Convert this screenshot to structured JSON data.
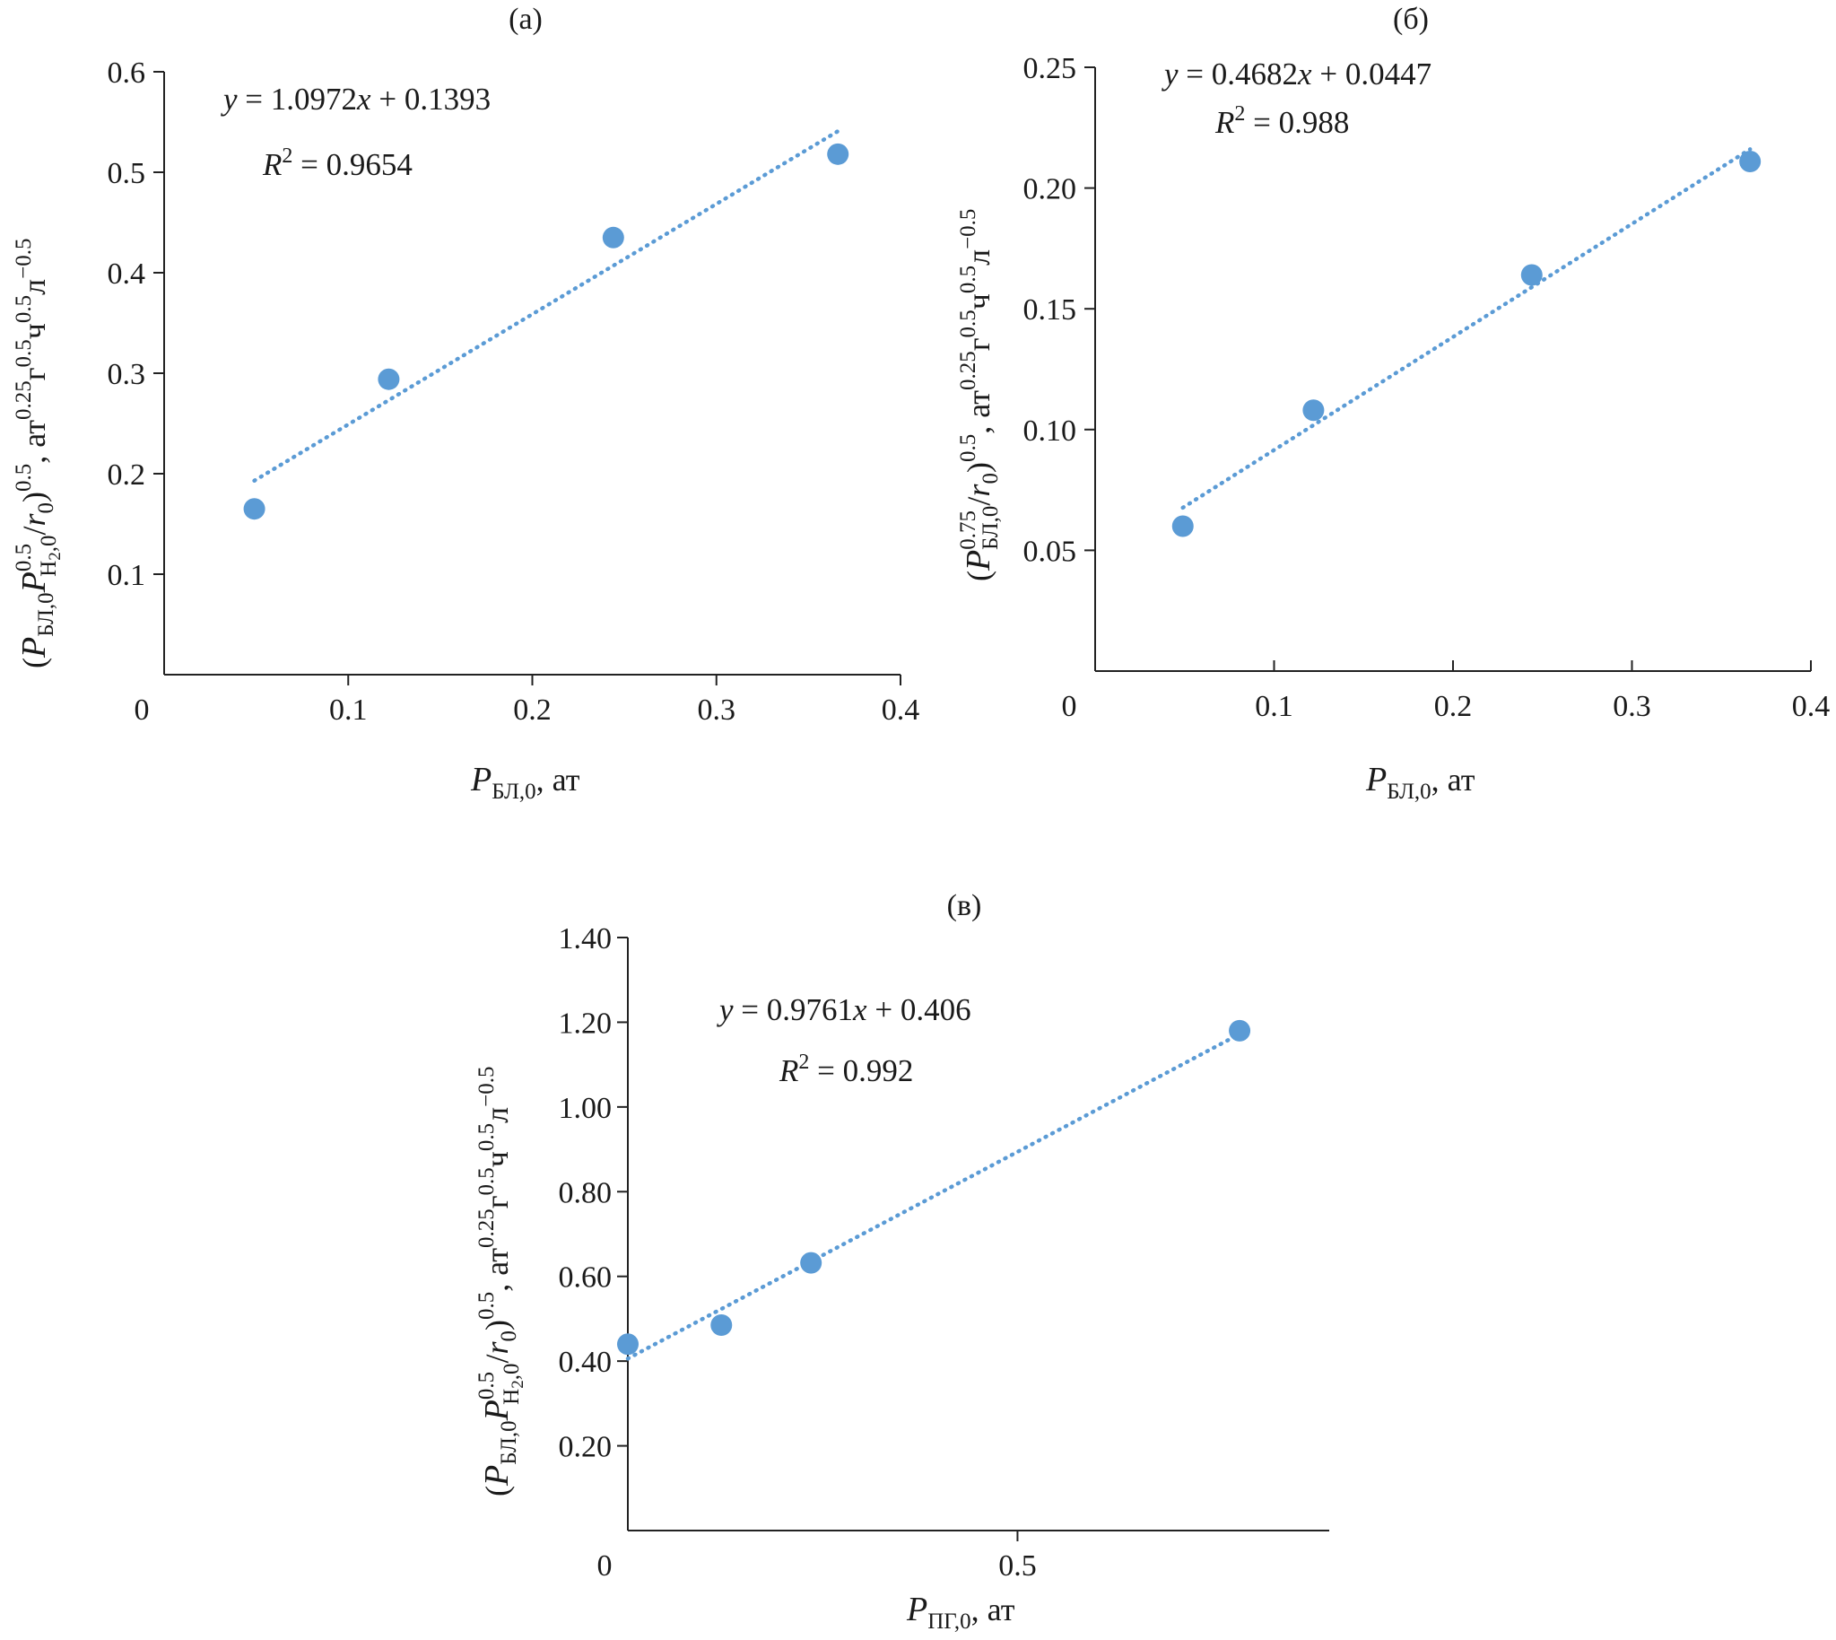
{
  "chart_data": [
    {
      "type": "scatter",
      "panel_label": "(a)",
      "xlim": [
        0,
        0.4
      ],
      "ylim": [
        0,
        0.6
      ],
      "xticks": [
        {
          "v": 0,
          "label": "0"
        },
        {
          "v": 0.1,
          "label": "0.1"
        },
        {
          "v": 0.2,
          "label": "0.2"
        },
        {
          "v": 0.3,
          "label": "0.3"
        },
        {
          "v": 0.4,
          "label": "0.4"
        }
      ],
      "yticks": [
        {
          "v": 0.1,
          "label": "0.1"
        },
        {
          "v": 0.2,
          "label": "0.2"
        },
        {
          "v": 0.3,
          "label": "0.3"
        },
        {
          "v": 0.4,
          "label": "0.4"
        },
        {
          "v": 0.5,
          "label": "0.5"
        },
        {
          "v": 0.6,
          "label": "0.6"
        }
      ],
      "points": [
        {
          "x": 0.049,
          "y": 0.165
        },
        {
          "x": 0.122,
          "y": 0.294
        },
        {
          "x": 0.244,
          "y": 0.435
        },
        {
          "x": 0.366,
          "y": 0.518
        }
      ],
      "trendline": {
        "slope": 1.0972,
        "intercept": 0.1393,
        "x_range": [
          0.049,
          0.366
        ]
      },
      "equation": {
        "lhs": "y",
        "rhs_mid": " = 1.0972",
        "var": "x",
        "rhs_end": " + 0.1393"
      },
      "r2": {
        "sym": "R",
        "exp": "2",
        "value": " = 0.9654"
      },
      "xlabel": {
        "p": "P",
        "sub": "БЛ,0",
        "rest": ", ат"
      },
      "ylabel": {
        "open": "(",
        "p1": "P",
        "s1": "БЛ,0",
        "p2": "P",
        "sup2": "0.5",
        "s2": "H",
        "s2b": "2",
        "s2c": ",0",
        "div": "/",
        "r": "r",
        "rs": "0",
        "close": ")",
        "e": "0.5",
        "unit": ", ат",
        "ue1": "0.25",
        "u2": "г",
        "ue2": "0.5",
        "u3": "ч",
        "ue3": "0.5",
        "u4": "л",
        "ue4": "−0.5"
      }
    },
    {
      "type": "scatter",
      "panel_label": "(б)",
      "xlim": [
        0,
        0.4
      ],
      "ylim": [
        0,
        0.25
      ],
      "xticks": [
        {
          "v": 0,
          "label": "0"
        },
        {
          "v": 0.1,
          "label": "0.1"
        },
        {
          "v": 0.2,
          "label": "0.2"
        },
        {
          "v": 0.3,
          "label": "0.3"
        },
        {
          "v": 0.4,
          "label": "0.4"
        }
      ],
      "yticks": [
        {
          "v": 0.05,
          "label": "0.05"
        },
        {
          "v": 0.1,
          "label": "0.10"
        },
        {
          "v": 0.15,
          "label": "0.15"
        },
        {
          "v": 0.2,
          "label": "0.20"
        },
        {
          "v": 0.25,
          "label": "0.25"
        }
      ],
      "points": [
        {
          "x": 0.049,
          "y": 0.06
        },
        {
          "x": 0.122,
          "y": 0.108
        },
        {
          "x": 0.244,
          "y": 0.164
        },
        {
          "x": 0.366,
          "y": 0.211
        }
      ],
      "trendline": {
        "slope": 0.4682,
        "intercept": 0.0447,
        "x_range": [
          0.049,
          0.366
        ]
      },
      "equation": {
        "lhs": "y",
        "rhs_mid": " = 0.4682",
        "var": "x",
        "rhs_end": " + 0.0447"
      },
      "r2": {
        "sym": "R",
        "exp": "2",
        "value": " = 0.988"
      },
      "xlabel": {
        "p": "P",
        "sub": "БЛ,0",
        "rest": ", ат"
      },
      "ylabel": {
        "open": "(",
        "p1": "P",
        "sup1": "0.75",
        "s1": "БЛ,0",
        "div": "/",
        "r": "r",
        "rs": "0",
        "close": ")",
        "e": "0.5",
        "unit": ", ат",
        "ue1": "0.25",
        "u2": "г",
        "ue2": "0.5",
        "u3": "ч",
        "ue3": "0.5",
        "u4": "л",
        "ue4": "−0.5"
      }
    },
    {
      "type": "scatter",
      "panel_label": "(в)",
      "xlim": [
        0,
        0.9
      ],
      "ylim": [
        0,
        1.4
      ],
      "xticks": [
        {
          "v": 0,
          "label": "0"
        },
        {
          "v": 0.5,
          "label": "0.5"
        }
      ],
      "yticks": [
        {
          "v": 0.2,
          "label": "0.20"
        },
        {
          "v": 0.4,
          "label": "0.40"
        },
        {
          "v": 0.6,
          "label": "0.60"
        },
        {
          "v": 0.8,
          "label": "0.80"
        },
        {
          "v": 1.0,
          "label": "1.00"
        },
        {
          "v": 1.2,
          "label": "1.20"
        },
        {
          "v": 1.4,
          "label": "1.40"
        }
      ],
      "points": [
        {
          "x": 0.0,
          "y": 0.44
        },
        {
          "x": 0.12,
          "y": 0.485
        },
        {
          "x": 0.235,
          "y": 0.632
        },
        {
          "x": 0.785,
          "y": 1.18
        }
      ],
      "trendline": {
        "slope": 0.9761,
        "intercept": 0.406,
        "x_range": [
          0.0,
          0.785
        ]
      },
      "equation": {
        "lhs": "y",
        "rhs_mid": " = 0.9761",
        "var": "x",
        "rhs_end": " + 0.406"
      },
      "r2": {
        "sym": "R",
        "exp": "2",
        "value": " = 0.992"
      },
      "xlabel": {
        "p": "P",
        "sub": "ПГ,0",
        "rest": ", ат"
      },
      "ylabel": {
        "open": "(",
        "p1": "P",
        "s1": "БЛ,0",
        "p2": "P",
        "sup2": "0.5",
        "s2": "H",
        "s2b": "2",
        "s2c": ",0",
        "div": "/",
        "r": "r",
        "rs": "0",
        "close": ")",
        "e": "0.5",
        "unit": ", ат",
        "ue1": "0.25",
        "u2": "г",
        "ue2": "0.5",
        "u3": "ч",
        "ue3": "0.5",
        "u4": "л",
        "ue4": "−0.5"
      }
    }
  ]
}
